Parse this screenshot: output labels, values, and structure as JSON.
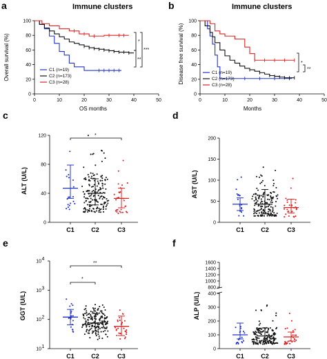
{
  "colors": {
    "c1": "#2233cc",
    "c2": "#111111",
    "c3": "#dd2222"
  },
  "panels": {
    "a": {
      "letter": "a",
      "title": "Immune clusters",
      "ylabel": "Overall survival (%)",
      "xlabel": "OS months",
      "yticks": [
        "0",
        "20",
        "40",
        "60",
        "80",
        "100"
      ],
      "xticks": [
        "0",
        "10",
        "20",
        "30",
        "40",
        "50"
      ],
      "legend": [
        "C1 (n=19)",
        "C2 (n=173)",
        "C3 (n=28)"
      ],
      "sig": [
        "*",
        "**",
        "***"
      ]
    },
    "b": {
      "letter": "b",
      "title": "Immune clusters",
      "ylabel": "Disease free survival (%)",
      "xlabel": "Months",
      "yticks": [
        "0",
        "20",
        "40",
        "60",
        "80",
        "100"
      ],
      "xticks": [
        "0",
        "10",
        "20",
        "30",
        "40",
        "50"
      ],
      "legend": [
        "C1 (n=19)",
        "C2 (n=173)",
        "C3 (n=28)"
      ],
      "sig": [
        "*",
        "**"
      ]
    },
    "c": {
      "letter": "c",
      "ylabel": "ALT (U/L)",
      "yticks": [
        "0",
        "40",
        "80",
        "120"
      ],
      "groups": [
        "C1",
        "C2",
        "C3"
      ],
      "sig": [
        "*"
      ]
    },
    "d": {
      "letter": "d",
      "ylabel": "AST (U/L)",
      "yticks": [
        "0",
        "50",
        "100",
        "150",
        "200"
      ],
      "groups": [
        "C1",
        "C2",
        "C3"
      ]
    },
    "e": {
      "letter": "e",
      "ylabel": "GGT (U/L)",
      "yticks": [
        {
          "b": "10",
          "e": "1"
        },
        {
          "b": "10",
          "e": "2"
        },
        {
          "b": "10",
          "e": "3"
        },
        {
          "b": "10",
          "e": "4"
        }
      ],
      "groups": [
        "C1",
        "C2",
        "C3"
      ],
      "sig": [
        "*",
        "**"
      ]
    },
    "f": {
      "letter": "f",
      "ylabel": "ALP (U/L)",
      "yticks_low": [
        "0",
        "100",
        "200",
        "300",
        "400"
      ],
      "yticks_high": [
        "800",
        "1000",
        "1200",
        "1400",
        "1600"
      ],
      "groups": [
        "C1",
        "C2",
        "C3"
      ]
    }
  },
  "chart_data": [
    {
      "panel": "a",
      "type": "line",
      "xlabel": "OS months",
      "ylabel": "Overall survival (%)",
      "xlim": [
        0,
        50
      ],
      "ylim": [
        0,
        100
      ],
      "series": [
        {
          "name": "C1 (n=19)",
          "x": [
            0,
            2,
            4,
            6,
            8,
            10,
            12,
            14,
            16,
            20,
            35
          ],
          "y": [
            100,
            95,
            89,
            79,
            69,
            58,
            53,
            42,
            37,
            32,
            32
          ],
          "censor": [
            26,
            28,
            30,
            32,
            34
          ]
        },
        {
          "name": "C2 (n=173)",
          "x": [
            0,
            2,
            4,
            6,
            8,
            10,
            12,
            14,
            16,
            18,
            20,
            22,
            24,
            26,
            28,
            30,
            32,
            34,
            36,
            38,
            40
          ],
          "y": [
            100,
            95,
            90,
            86,
            82,
            78,
            75,
            71,
            69,
            67,
            65,
            63,
            62,
            61,
            60,
            59,
            58,
            57,
            57,
            56,
            56
          ],
          "censor": [
            20,
            22,
            24,
            26,
            28,
            30,
            32,
            34,
            36,
            38
          ]
        },
        {
          "name": "C3 (n=28)",
          "x": [
            0,
            3,
            6,
            10,
            14,
            18,
            22,
            26,
            28,
            34,
            38
          ],
          "y": [
            100,
            96,
            93,
            89,
            86,
            82,
            79,
            79,
            80,
            80,
            80
          ],
          "censor": [
            16,
            20,
            24,
            30,
            34,
            36
          ]
        }
      ]
    },
    {
      "panel": "b",
      "type": "line",
      "xlabel": "Months",
      "ylabel": "Disease free survival (%)",
      "xlim": [
        0,
        50
      ],
      "ylim": [
        0,
        100
      ],
      "series": [
        {
          "name": "C1 (n=19)",
          "x": [
            0,
            3,
            4,
            5,
            6,
            7,
            8,
            37
          ],
          "y": [
            100,
            89,
            79,
            68,
            53,
            37,
            21,
            21
          ],
          "censor": [
            18,
            24,
            30,
            36
          ]
        },
        {
          "name": "C2 (n=173)",
          "x": [
            0,
            2,
            4,
            5,
            6,
            8,
            10,
            12,
            14,
            16,
            18,
            20,
            22,
            24,
            26,
            28,
            30,
            32,
            34,
            36,
            38
          ],
          "y": [
            100,
            93,
            84,
            78,
            70,
            60,
            52,
            46,
            42,
            38,
            35,
            33,
            31,
            29,
            27,
            25,
            24,
            23,
            22,
            22,
            22
          ],
          "censor": [
            20,
            24,
            28,
            30,
            32,
            34,
            36,
            38
          ]
        },
        {
          "name": "C3 (n=28)",
          "x": [
            0,
            4,
            6,
            8,
            10,
            14,
            18,
            20,
            22,
            24,
            26,
            28,
            38
          ],
          "y": [
            100,
            96,
            86,
            82,
            79,
            75,
            64,
            55,
            46,
            46,
            46,
            46,
            46
          ],
          "censor": [
            22,
            26,
            30,
            34,
            38
          ]
        }
      ]
    },
    {
      "panel": "c",
      "type": "scatter",
      "ylabel": "ALT (U/L)",
      "ylim": [
        0,
        120
      ],
      "categories": [
        "C1",
        "C2",
        "C3"
      ],
      "mean": [
        47,
        40,
        33
      ],
      "sd_upper": [
        79,
        60,
        47
      ],
      "sd_lower": [
        33,
        24,
        20
      ]
    },
    {
      "panel": "d",
      "type": "scatter",
      "ylabel": "AST (U/L)",
      "ylim": [
        0,
        200
      ],
      "categories": [
        "C1",
        "C2",
        "C3"
      ],
      "mean": [
        43,
        43,
        35
      ],
      "sd_upper": [
        58,
        78,
        55
      ],
      "sd_lower": [
        28,
        20,
        22
      ]
    },
    {
      "panel": "e",
      "type": "scatter",
      "ylabel": "GGT (U/L)",
      "scale": "log",
      "ylim": [
        10,
        10000
      ],
      "categories": [
        "C1",
        "C2",
        "C3"
      ],
      "mean": [
        120,
        75,
        58
      ],
      "sd_upper": [
        220,
        160,
        130
      ],
      "sd_lower": [
        65,
        40,
        28
      ]
    },
    {
      "panel": "f",
      "type": "scatter",
      "ylabel": "ALP (U/L)",
      "ylim": [
        0,
        1600
      ],
      "axis_break": [
        400,
        800
      ],
      "categories": [
        "C1",
        "C2",
        "C3"
      ],
      "mean": [
        100,
        92,
        85
      ],
      "sd_upper": [
        185,
        150,
        120
      ],
      "sd_lower": [
        70,
        60,
        55
      ]
    }
  ]
}
